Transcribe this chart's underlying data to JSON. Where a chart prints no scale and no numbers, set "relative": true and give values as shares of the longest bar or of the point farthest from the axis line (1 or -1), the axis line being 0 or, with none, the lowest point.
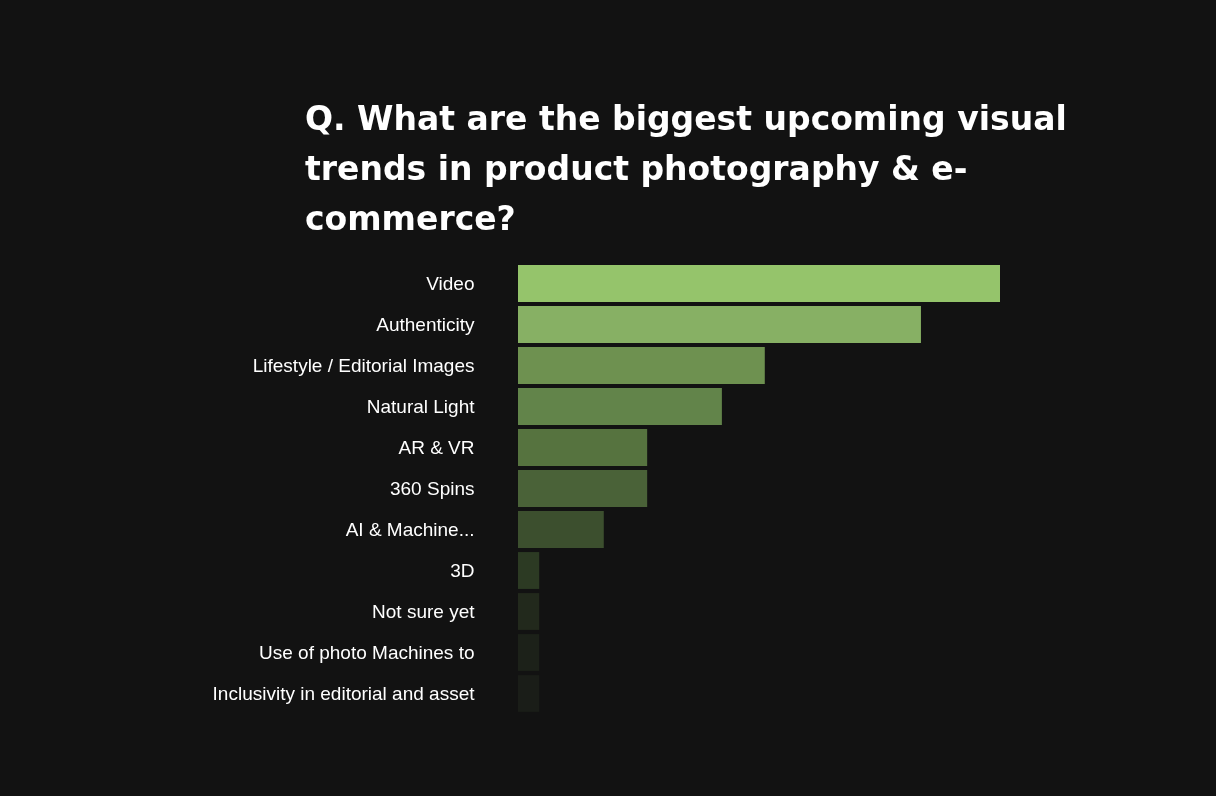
{
  "chart_data": {
    "type": "bar",
    "orientation": "horizontal",
    "relative": true,
    "title": "Q. What are the biggest upcoming visual trends in product photography & e-commerce?",
    "categories": [
      "Video",
      "Authenticity",
      "Lifestyle / Editorial Images",
      "Natural Light",
      "AR & VR",
      "360  Spins",
      "AI & Machine...",
      "3D",
      "Not sure yet",
      "Use of photo Machines to",
      "Inclusivity in editorial and asset"
    ],
    "values": [
      1,
      0.836,
      0.512,
      0.423,
      0.268,
      0.268,
      0.178,
      0.044,
      0.044,
      0.044,
      0.044
    ],
    "colors": [
      "#95c46b",
      "#87b064",
      "#6e9150",
      "#62844a",
      "#56733f",
      "#4a6238",
      "#3c4f2e",
      "#2c3a23",
      "#22291c",
      "#1c2119",
      "#1a1d18"
    ]
  }
}
